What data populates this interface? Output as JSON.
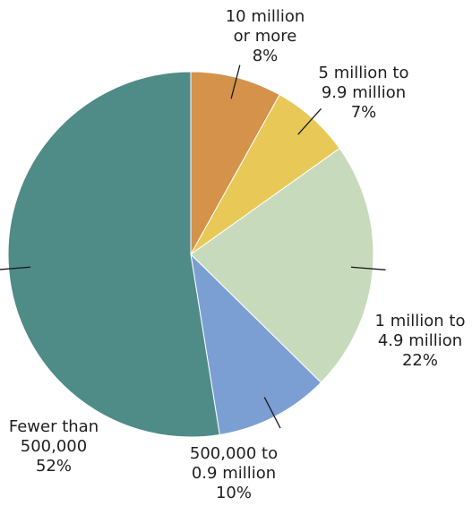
{
  "chart_data": {
    "type": "pie",
    "title": "",
    "start_angle_deg": 0,
    "direction": "clockwise",
    "legend": "none",
    "slices": [
      {
        "category": "10 million or more",
        "label_lines": [
          "10 million",
          "or more"
        ],
        "value": 8,
        "value_label": "8%",
        "color": "#D4924A"
      },
      {
        "category": "5 million to 9.9 million",
        "label_lines": [
          "5 million to",
          "9.9 million"
        ],
        "value": 7,
        "value_label": "7%",
        "color": "#E8C957"
      },
      {
        "category": "1 million to 4.9 million",
        "label_lines": [
          "1 million to",
          "4.9 million"
        ],
        "value": 22,
        "value_label": "22%",
        "color": "#C8DABC"
      },
      {
        "category": "500,000 to 0.9 million",
        "label_lines": [
          "500,000 to",
          "0.9 million"
        ],
        "value": 10,
        "value_label": "10%",
        "color": "#7B9FD3"
      },
      {
        "category": "Fewer than 500,000",
        "label_lines": [
          "Fewer than",
          "500,000"
        ],
        "value": 52,
        "value_label": "52%",
        "color": "#4F8B87"
      }
    ]
  }
}
